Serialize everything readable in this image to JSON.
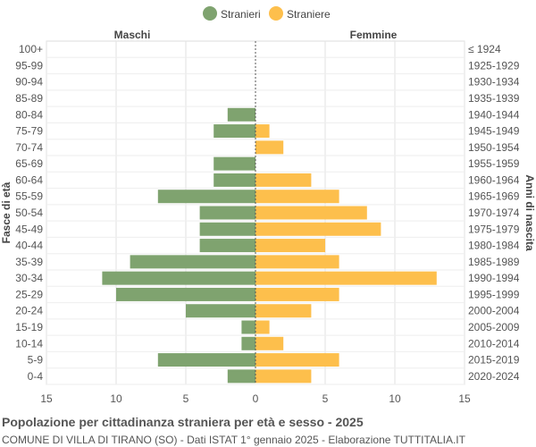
{
  "chart_data": {
    "type": "bar",
    "orientation": "horizontal-pyramid",
    "title": "Popolazione per cittadinanza straniera per età e sesso - 2025",
    "subtitle": "COMUNE DI VILLA DI TIRANO (SO) - Dati ISTAT 1° gennaio 2025 - Elaborazione TUTTITALIA.IT",
    "left_header": "Maschi",
    "right_header": "Femmine",
    "ylabel_left": "Fasce di età",
    "ylabel_right": "Anni di nascita",
    "xlim": [
      -15,
      15
    ],
    "xticks": [
      "15",
      "10",
      "5",
      "0",
      "5",
      "10",
      "15"
    ],
    "grid": true,
    "legend_position": "top",
    "categories": [
      "100+",
      "95-99",
      "90-94",
      "85-89",
      "80-84",
      "75-79",
      "70-74",
      "65-69",
      "60-64",
      "55-59",
      "50-54",
      "45-49",
      "40-44",
      "35-39",
      "30-34",
      "25-29",
      "20-24",
      "15-19",
      "10-14",
      "5-9",
      "0-4"
    ],
    "birth_years": [
      "≤ 1924",
      "1925-1929",
      "1930-1934",
      "1935-1939",
      "1940-1944",
      "1945-1949",
      "1950-1954",
      "1955-1959",
      "1960-1964",
      "1965-1969",
      "1970-1974",
      "1975-1979",
      "1980-1984",
      "1985-1989",
      "1990-1994",
      "1995-1999",
      "2000-2004",
      "2005-2009",
      "2010-2014",
      "2015-2019",
      "2020-2024"
    ],
    "series": [
      {
        "name": "Stranieri",
        "color": "#7fa36f",
        "values": [
          0,
          0,
          0,
          0,
          2,
          3,
          0,
          3,
          3,
          7,
          4,
          4,
          4,
          9,
          11,
          10,
          5,
          1,
          1,
          7,
          2
        ]
      },
      {
        "name": "Straniere",
        "color": "#fdbf4c",
        "values": [
          0,
          0,
          0,
          0,
          0,
          1,
          2,
          0,
          4,
          6,
          8,
          9,
          5,
          6,
          13,
          6,
          4,
          1,
          2,
          6,
          4
        ]
      }
    ]
  }
}
